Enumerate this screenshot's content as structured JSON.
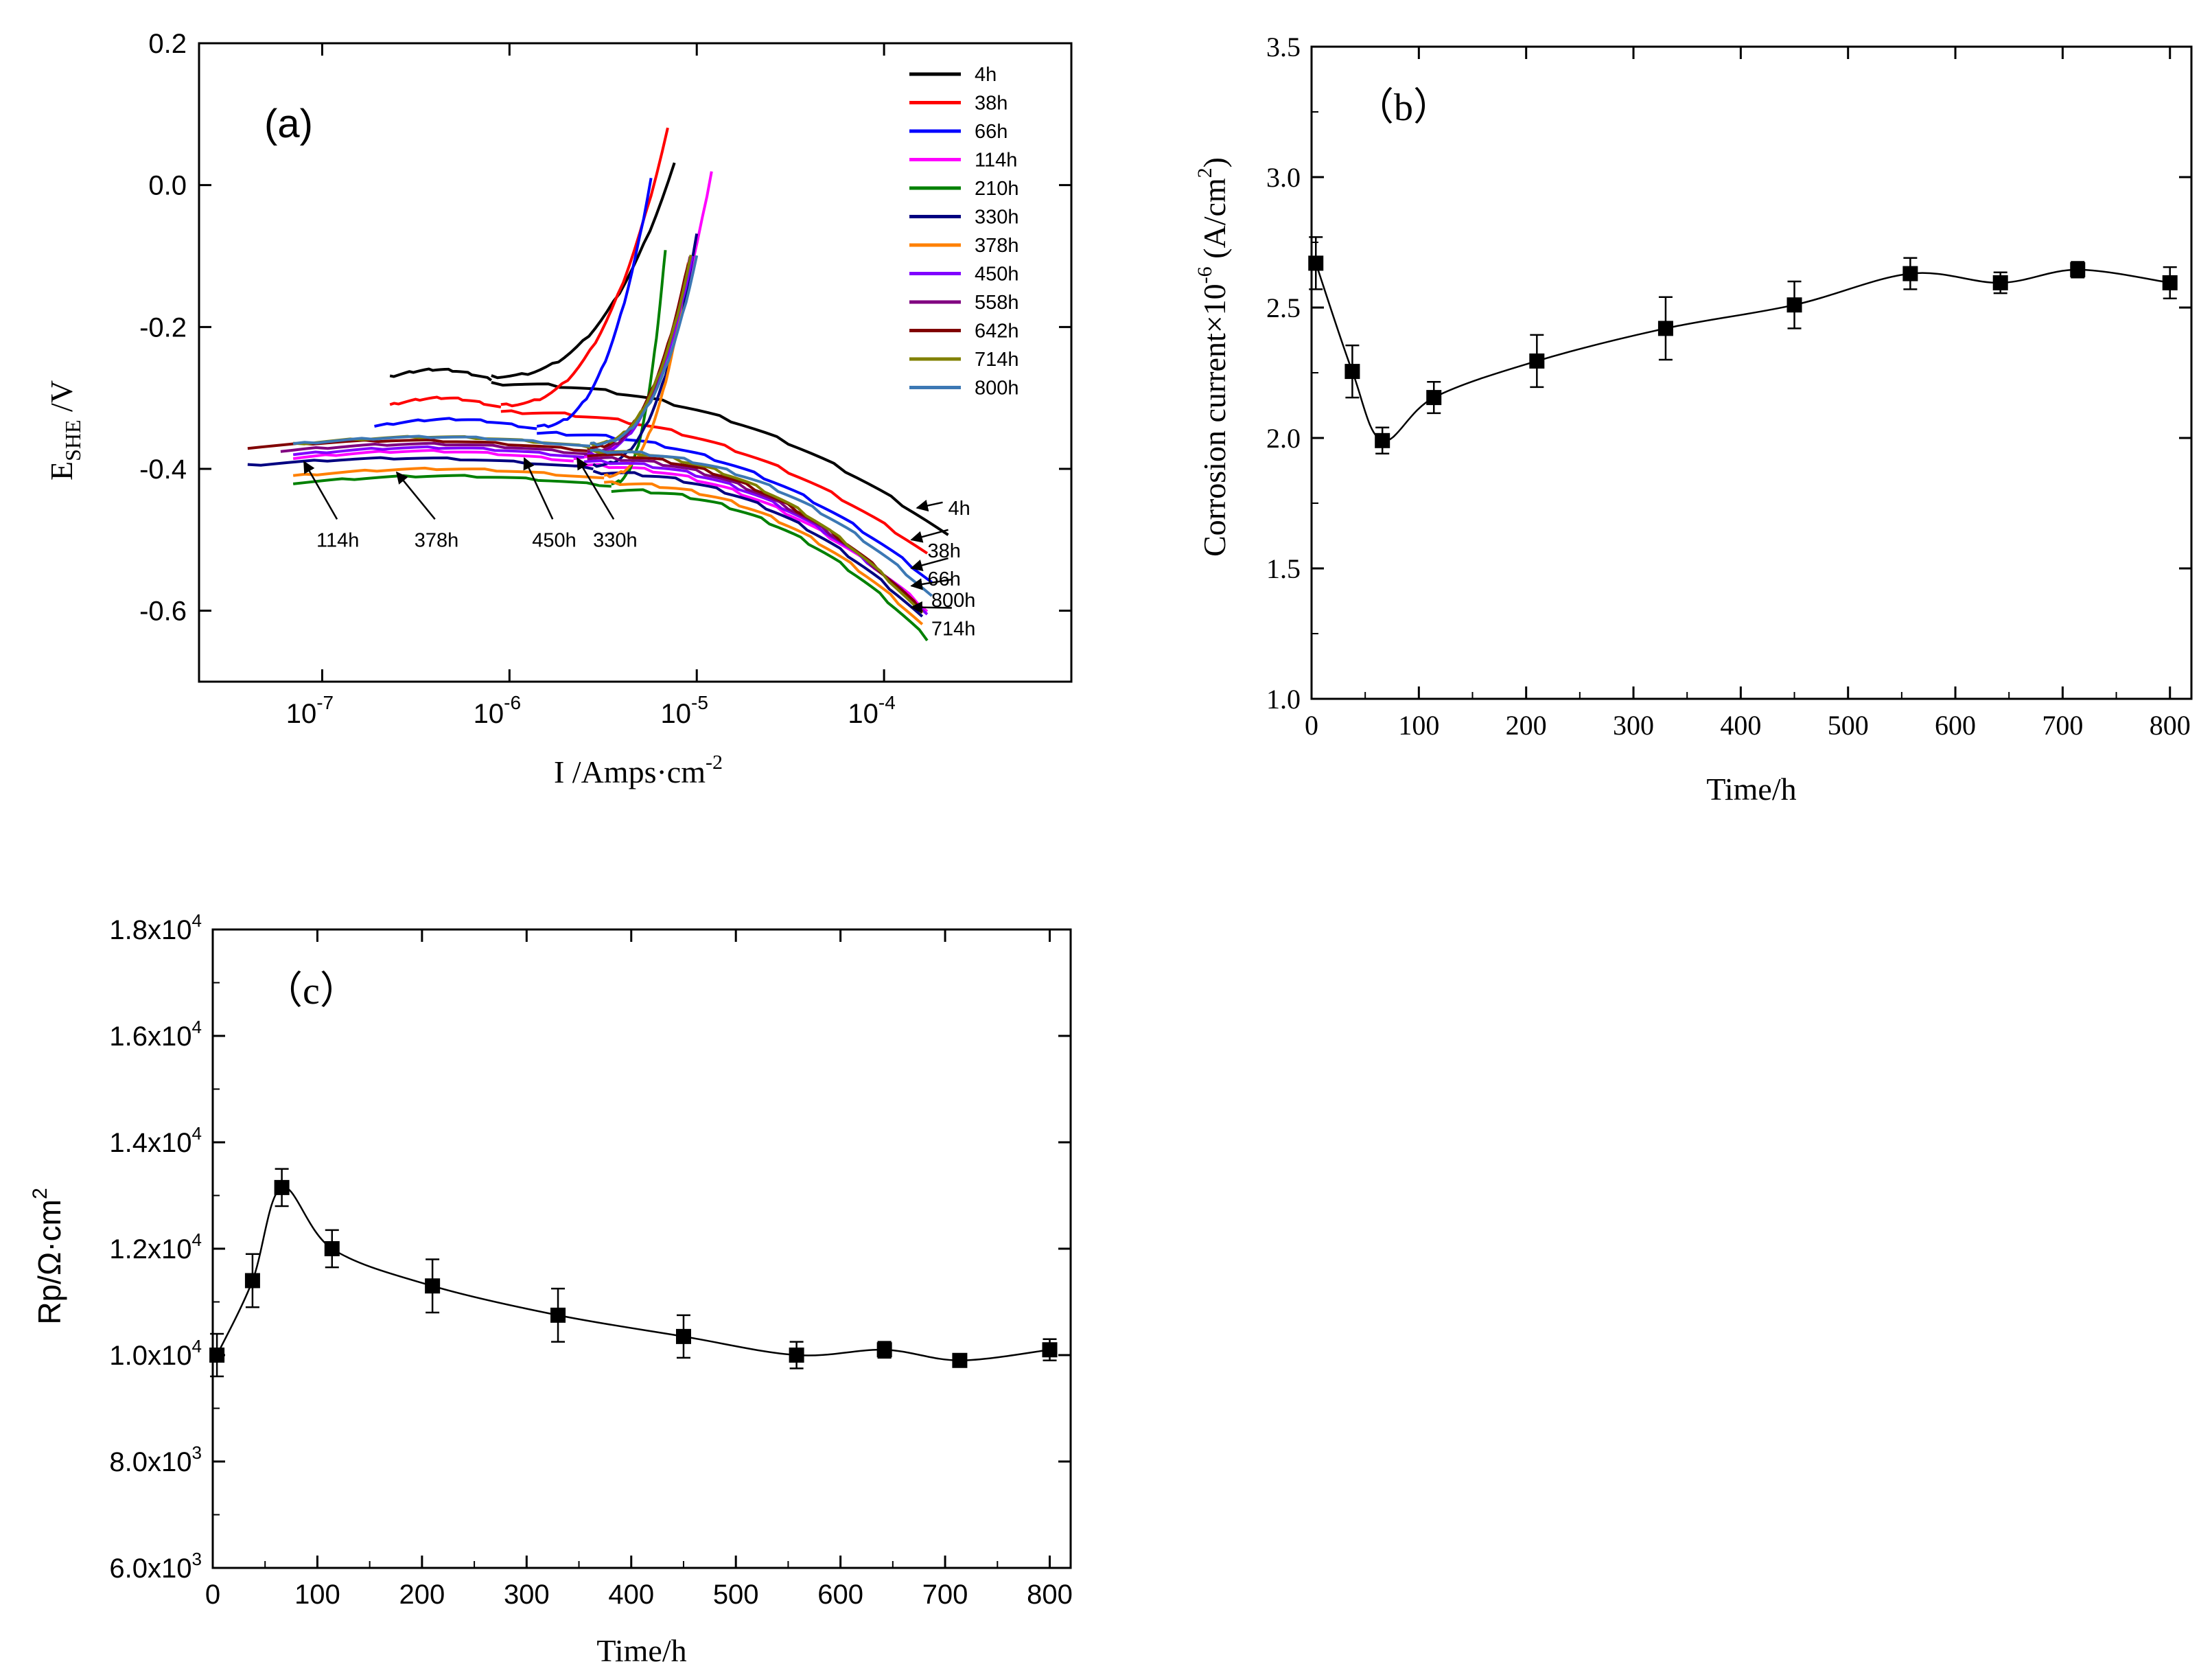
{
  "chart_data": [
    {
      "id": "a",
      "type": "line",
      "panel_label": "(a)",
      "title": "",
      "xlabel": "I /Amps·cm",
      "xlabel_sup": "-2",
      "ylabel": "E",
      "ylabel_sub": "SHE",
      "ylabel_tail": " /V",
      "xscale": "log",
      "xlim": [
        2.2e-08,
        0.001
      ],
      "ylim": [
        -0.7,
        0.2
      ],
      "x_tick_labels": [
        {
          "base": "10",
          "exp": "-7",
          "value": 1e-07
        },
        {
          "base": "10",
          "exp": "-6",
          "value": 1e-06
        },
        {
          "base": "10",
          "exp": "-5",
          "value": 1e-05
        },
        {
          "base": "10",
          "exp": "-4",
          "value": 0.0001
        }
      ],
      "y_ticks": [
        0.2,
        0.0,
        -0.2,
        -0.4,
        -0.6
      ],
      "y_tick_labels": [
        "0.2",
        "0.0",
        "-0.2",
        "-0.4",
        "-0.6"
      ],
      "legend_position": "top-right",
      "series": [
        {
          "name": "4h",
          "color": "#000000",
          "ecorr": -0.27,
          "i0": 2.3e-07,
          "c_tip": [
            7.6e-06,
            0.03
          ],
          "a_tip": [
            0.00022,
            -0.495
          ],
          "break": 8e-07
        },
        {
          "name": "38h",
          "color": "#ff0000",
          "ecorr": -0.31,
          "i0": 2.3e-07,
          "c_tip": [
            7e-06,
            0.08
          ],
          "a_tip": [
            0.00017,
            -0.52
          ],
          "break": 9e-07
        },
        {
          "name": "66h",
          "color": "#0000ff",
          "ecorr": -0.34,
          "i0": 1.9e-07,
          "c_tip": [
            5.7e-06,
            0.01
          ],
          "a_tip": [
            0.00018,
            -0.56
          ],
          "break": 1.4e-06
        },
        {
          "name": "114h",
          "color": "#ff00ff",
          "ecorr": -0.385,
          "i0": 7e-08,
          "c_tip": [
            1.2e-05,
            0.02
          ],
          "a_tip": [
            0.00017,
            -0.6
          ],
          "break": 2.2e-06
        },
        {
          "name": "210h",
          "color": "#008000",
          "ecorr": -0.42,
          "i0": 7e-08,
          "c_tip": [
            6.8e-06,
            -0.09
          ],
          "a_tip": [
            0.00017,
            -0.64
          ],
          "break": 3.5e-06
        },
        {
          "name": "330h",
          "color": "#000080",
          "ecorr": -0.395,
          "i0": 4e-08,
          "c_tip": [
            1e-05,
            -0.07
          ],
          "a_tip": [
            0.00016,
            -0.61
          ],
          "break": 2.8e-06
        },
        {
          "name": "378h",
          "color": "#ff8000",
          "ecorr": -0.41,
          "i0": 7e-08,
          "c_tip": [
            9e-06,
            -0.11
          ],
          "a_tip": [
            0.00016,
            -0.62
          ],
          "break": 3.2e-06
        },
        {
          "name": "450h",
          "color": "#8000ff",
          "ecorr": -0.38,
          "i0": 7e-08,
          "c_tip": [
            9.5e-06,
            -0.1
          ],
          "a_tip": [
            0.00017,
            -0.605
          ],
          "break": 2.5e-06
        },
        {
          "name": "558h",
          "color": "#800080",
          "ecorr": -0.375,
          "i0": 6e-08,
          "c_tip": [
            9.2e-06,
            -0.1
          ],
          "a_tip": [
            0.00016,
            -0.6
          ],
          "break": 2.6e-06
        },
        {
          "name": "642h",
          "color": "#800000",
          "ecorr": -0.37,
          "i0": 4e-08,
          "c_tip": [
            9e-06,
            -0.11
          ],
          "a_tip": [
            0.00016,
            -0.6
          ],
          "break": 2.6e-06
        },
        {
          "name": "714h",
          "color": "#808000",
          "ecorr": -0.365,
          "i0": 7e-08,
          "c_tip": [
            9.3e-06,
            -0.1
          ],
          "a_tip": [
            0.00016,
            -0.605
          ],
          "break": 2.7e-06
        },
        {
          "name": "800h",
          "color": "#3c78b4",
          "ecorr": -0.365,
          "i0": 7e-08,
          "c_tip": [
            1e-05,
            -0.1
          ],
          "a_tip": [
            0.00018,
            -0.58
          ],
          "break": 2.7e-06
        }
      ],
      "annotations": [
        {
          "text": "4h",
          "from": [
            0.00022,
            -0.455
          ],
          "to": [
            0.00015,
            -0.455
          ]
        },
        {
          "text": "38h",
          "from": [
            0.00022,
            -0.515
          ],
          "to": [
            0.00014,
            -0.5
          ]
        },
        {
          "text": "66h",
          "from": [
            0.00022,
            -0.555
          ],
          "to": [
            0.00014,
            -0.54
          ]
        },
        {
          "text": "800h",
          "from": [
            0.00023,
            -0.585
          ],
          "to": [
            0.00014,
            -0.565
          ]
        },
        {
          "text": "714h",
          "from": [
            0.00023,
            -0.625
          ],
          "to": [
            0.00014,
            -0.595
          ]
        },
        {
          "text": "114h",
          "from": [
            1.2e-07,
            -0.5
          ],
          "to": [
            8e-08,
            -0.39
          ]
        },
        {
          "text": "378h",
          "from": [
            4e-07,
            -0.5
          ],
          "to": [
            2.5e-07,
            -0.405
          ]
        },
        {
          "text": "450h",
          "from": [
            1.7e-06,
            -0.5
          ],
          "to": [
            1.2e-06,
            -0.385
          ]
        },
        {
          "text": "330h",
          "from": [
            3.6e-06,
            -0.5
          ],
          "to": [
            2.3e-06,
            -0.385
          ]
        }
      ]
    },
    {
      "id": "b",
      "type": "scatter",
      "panel_label": "（b）",
      "title": "",
      "xlabel": "Time/h",
      "ylabel": "Corrosion current×10",
      "ylabel_exp": "-6",
      "ylabel_unit": " (A/cm",
      "ylabel_unit_exp": "2",
      "ylabel_close": ")",
      "xlim": [
        0,
        820
      ],
      "ylim": [
        1.0,
        3.5
      ],
      "x_ticks": [
        0,
        100,
        200,
        300,
        400,
        500,
        600,
        700,
        800
      ],
      "x_tick_labels": [
        "0",
        "100",
        "200",
        "300",
        "400",
        "500",
        "600",
        "700",
        "800"
      ],
      "y_ticks": [
        1.0,
        1.5,
        2.0,
        2.5,
        3.0,
        3.5
      ],
      "y_tick_labels": [
        "1.0",
        "1.5",
        "2.0",
        "2.5",
        "3.0",
        "3.5"
      ],
      "series": [
        {
          "name": "corrosion current",
          "x": [
            4,
            38,
            66,
            114,
            210,
            330,
            450,
            558,
            642,
            714,
            800
          ],
          "y": [
            2.67,
            2.255,
            1.99,
            2.155,
            2.295,
            2.42,
            2.51,
            2.63,
            2.595,
            2.645,
            2.595
          ],
          "err": [
            0.1,
            0.1,
            0.05,
            0.06,
            0.1,
            0.12,
            0.09,
            0.06,
            0.04,
            0.03,
            0.06
          ]
        }
      ]
    },
    {
      "id": "c",
      "type": "scatter",
      "panel_label": "（c）",
      "title": "",
      "xlabel": "Time/h",
      "ylabel": "Rp/Ω·cm",
      "ylabel_exp": "2",
      "xlim": [
        0,
        820
      ],
      "ylim": [
        6000,
        18000
      ],
      "x_ticks": [
        0,
        100,
        200,
        300,
        400,
        500,
        600,
        700,
        800
      ],
      "x_tick_labels": [
        "0",
        "100",
        "200",
        "300",
        "400",
        "500",
        "600",
        "700",
        "800"
      ],
      "y_ticks": [
        6000,
        8000,
        10000,
        12000,
        14000,
        16000,
        18000
      ],
      "y_tick_labels": [
        {
          "mant": "6.0x10",
          "exp": "3"
        },
        {
          "mant": "8.0x10",
          "exp": "3"
        },
        {
          "mant": "1.0x10",
          "exp": "4"
        },
        {
          "mant": "1.2x10",
          "exp": "4"
        },
        {
          "mant": "1.4x10",
          "exp": "4"
        },
        {
          "mant": "1.6x10",
          "exp": "4"
        },
        {
          "mant": "1.8x10",
          "exp": "4"
        }
      ],
      "series": [
        {
          "name": "Rp",
          "x": [
            4,
            38,
            66,
            114,
            210,
            330,
            450,
            558,
            642,
            714,
            800
          ],
          "y": [
            10000,
            11400,
            13150,
            12000,
            11300,
            10750,
            10350,
            10000,
            10100,
            9900,
            10100
          ],
          "err": [
            400,
            500,
            350,
            350,
            500,
            500,
            400,
            250,
            150,
            100,
            200
          ]
        }
      ]
    }
  ]
}
